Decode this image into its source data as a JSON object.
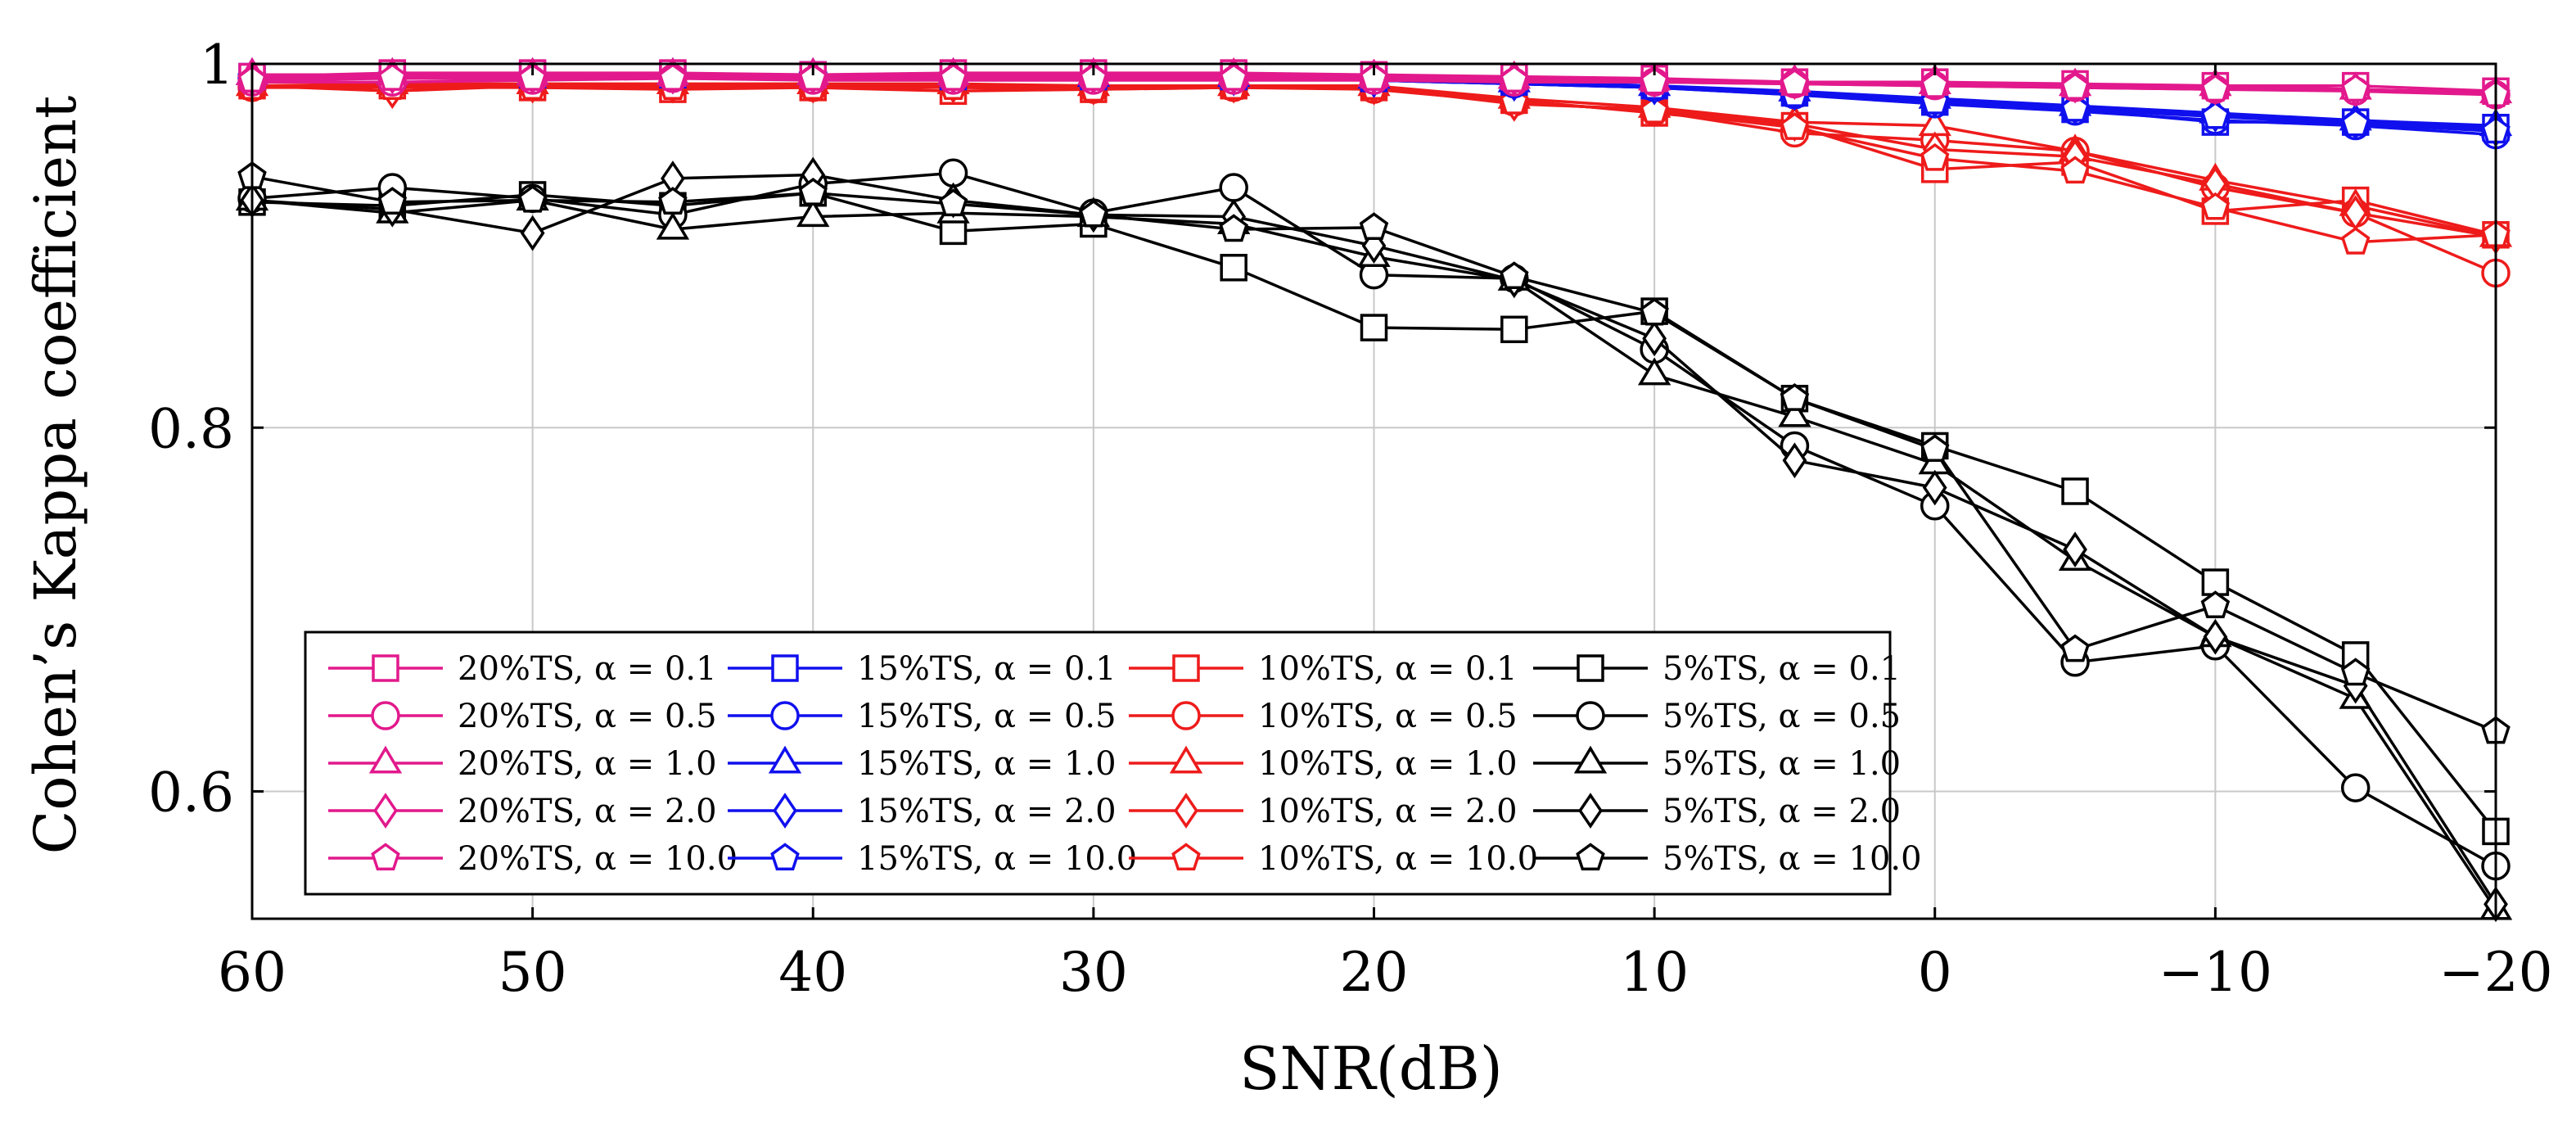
{
  "chart_data": {
    "type": "line",
    "title": "",
    "xlabel": "SNR(dB)",
    "ylabel": "Cohen’s Kappa coefficient",
    "xlim": [
      60,
      -20
    ],
    "ylim": [
      0.53,
      1.0
    ],
    "grid": true,
    "legend_position": "bottom-left",
    "x": [
      60,
      55,
      50,
      45,
      40,
      35,
      30,
      25,
      20,
      15,
      10,
      5,
      0,
      -5,
      -10,
      -15,
      -20
    ],
    "x_ticks": [
      60,
      50,
      40,
      30,
      20,
      10,
      0,
      -10,
      -20
    ],
    "x_tick_labels": [
      "60",
      "50",
      "40",
      "30",
      "20",
      "10",
      "0",
      "−10",
      "−20"
    ],
    "y_ticks": [
      0.6,
      0.8,
      1.0
    ],
    "y_tick_labels": [
      "0.6",
      "0.8",
      "1"
    ],
    "colors": {
      "20%TS": "#e2198c",
      "15%TS": "#1010ee",
      "10%TS": "#ee1b1b",
      "5%TS": "#000000"
    },
    "series": [
      {
        "name": "20%TS, α = 0.1",
        "group": "20%TS",
        "marker": "square",
        "values": [
          0.993,
          0.995,
          0.995,
          0.995,
          0.994,
          0.995,
          0.995,
          0.995,
          0.994,
          0.993,
          0.992,
          0.99,
          0.99,
          0.989,
          0.988,
          0.988,
          0.985
        ]
      },
      {
        "name": "20%TS, α = 0.5",
        "group": "20%TS",
        "marker": "circle",
        "values": [
          0.99,
          0.99,
          0.991,
          0.992,
          0.991,
          0.991,
          0.991,
          0.991,
          0.991,
          0.99,
          0.99,
          0.989,
          0.988,
          0.987,
          0.986,
          0.985,
          0.983
        ]
      },
      {
        "name": "20%TS, α = 1.0",
        "group": "20%TS",
        "marker": "triangle",
        "values": [
          0.994,
          0.994,
          0.994,
          0.994,
          0.994,
          0.994,
          0.994,
          0.994,
          0.993,
          0.992,
          0.991,
          0.99,
          0.989,
          0.988,
          0.988,
          0.986,
          0.984
        ]
      },
      {
        "name": "20%TS, α = 2.0",
        "group": "20%TS",
        "marker": "diamond",
        "values": [
          0.992,
          0.993,
          0.993,
          0.993,
          0.993,
          0.993,
          0.993,
          0.993,
          0.993,
          0.992,
          0.991,
          0.99,
          0.99,
          0.988,
          0.987,
          0.986,
          0.984
        ]
      },
      {
        "name": "20%TS, α = 10.0",
        "group": "20%TS",
        "marker": "pentagon",
        "values": [
          0.991,
          0.992,
          0.992,
          0.992,
          0.992,
          0.992,
          0.992,
          0.992,
          0.992,
          0.991,
          0.99,
          0.989,
          0.988,
          0.987,
          0.986,
          0.986,
          0.983
        ]
      },
      {
        "name": "15%TS, α = 0.1",
        "group": "15%TS",
        "marker": "square",
        "values": [
          0.993,
          0.994,
          0.994,
          0.994,
          0.994,
          0.993,
          0.993,
          0.993,
          0.992,
          0.99,
          0.988,
          0.984,
          0.979,
          0.975,
          0.968,
          0.968,
          0.965
        ]
      },
      {
        "name": "15%TS, α = 0.5",
        "group": "15%TS",
        "marker": "circle",
        "values": [
          0.992,
          0.993,
          0.993,
          0.993,
          0.993,
          0.993,
          0.992,
          0.992,
          0.991,
          0.989,
          0.987,
          0.983,
          0.978,
          0.974,
          0.969,
          0.966,
          0.961
        ]
      },
      {
        "name": "15%TS, α = 1.0",
        "group": "15%TS",
        "marker": "triangle",
        "values": [
          0.994,
          0.994,
          0.994,
          0.994,
          0.994,
          0.994,
          0.993,
          0.993,
          0.992,
          0.99,
          0.988,
          0.985,
          0.981,
          0.977,
          0.973,
          0.969,
          0.966
        ]
      },
      {
        "name": "15%TS, α = 2.0",
        "group": "15%TS",
        "marker": "diamond",
        "values": [
          0.993,
          0.993,
          0.993,
          0.993,
          0.993,
          0.993,
          0.993,
          0.992,
          0.991,
          0.989,
          0.987,
          0.984,
          0.98,
          0.976,
          0.972,
          0.968,
          0.964
        ]
      },
      {
        "name": "15%TS, α = 10.0",
        "group": "15%TS",
        "marker": "pentagon",
        "values": [
          0.992,
          0.993,
          0.993,
          0.993,
          0.993,
          0.993,
          0.992,
          0.992,
          0.991,
          0.989,
          0.987,
          0.983,
          0.979,
          0.975,
          0.971,
          0.967,
          0.963
        ]
      },
      {
        "name": "10%TS, α = 0.1",
        "group": "10%TS",
        "marker": "square",
        "values": [
          0.988,
          0.988,
          0.987,
          0.986,
          0.987,
          0.985,
          0.986,
          0.988,
          0.987,
          0.98,
          0.973,
          0.966,
          0.942,
          0.946,
          0.919,
          0.925,
          0.906
        ]
      },
      {
        "name": "10%TS, α = 0.5",
        "group": "10%TS",
        "marker": "circle",
        "values": [
          0.987,
          0.988,
          0.988,
          0.988,
          0.987,
          0.988,
          0.986,
          0.987,
          0.986,
          0.979,
          0.974,
          0.962,
          0.958,
          0.952,
          0.932,
          0.918,
          0.885
        ]
      },
      {
        "name": "10%TS, α = 1.0",
        "group": "10%TS",
        "marker": "triangle",
        "values": [
          0.988,
          0.989,
          0.989,
          0.989,
          0.989,
          0.989,
          0.988,
          0.988,
          0.988,
          0.981,
          0.976,
          0.968,
          0.966,
          0.952,
          0.936,
          0.922,
          0.905
        ]
      },
      {
        "name": "10%TS, α = 2.0",
        "group": "10%TS",
        "marker": "diamond",
        "values": [
          0.988,
          0.985,
          0.988,
          0.988,
          0.988,
          0.988,
          0.987,
          0.988,
          0.987,
          0.978,
          0.975,
          0.967,
          0.953,
          0.949,
          0.934,
          0.918,
          0.905
        ]
      },
      {
        "name": "10%TS, α = 10.0",
        "group": "10%TS",
        "marker": "pentagon",
        "values": [
          0.987,
          0.987,
          0.987,
          0.987,
          0.987,
          0.987,
          0.986,
          0.987,
          0.987,
          0.979,
          0.974,
          0.965,
          0.948,
          0.941,
          0.921,
          0.902,
          0.906
        ]
      },
      {
        "name": "5%TS, α = 0.1",
        "group": "5%TS",
        "marker": "square",
        "values": [
          0.924,
          0.922,
          0.928,
          0.922,
          0.929,
          0.908,
          0.912,
          0.888,
          0.855,
          0.854,
          0.864,
          0.816,
          0.79,
          0.765,
          0.715,
          0.675,
          0.578
        ]
      },
      {
        "name": "5%TS, α = 0.5",
        "group": "5%TS",
        "marker": "circle",
        "values": [
          0.926,
          0.932,
          0.926,
          0.917,
          0.934,
          0.94,
          0.918,
          0.932,
          0.884,
          0.882,
          0.843,
          0.79,
          0.757,
          0.671,
          0.68,
          0.602,
          0.559
        ]
      },
      {
        "name": "5%TS, α = 1.0",
        "group": "5%TS",
        "marker": "triangle",
        "values": [
          0.925,
          0.918,
          0.925,
          0.909,
          0.916,
          0.918,
          0.916,
          0.912,
          0.894,
          0.881,
          0.829,
          0.806,
          0.78,
          0.727,
          0.685,
          0.651,
          0.535
        ]
      },
      {
        "name": "5%TS, α = 2.0",
        "group": "5%TS",
        "marker": "diamond",
        "values": [
          0.925,
          0.92,
          0.907,
          0.937,
          0.939,
          0.925,
          0.917,
          0.916,
          0.9,
          0.881,
          0.849,
          0.782,
          0.767,
          0.733,
          0.685,
          0.658,
          0.538
        ]
      },
      {
        "name": "5%TS, α = 10.0",
        "group": "5%TS",
        "marker": "pentagon",
        "values": [
          0.938,
          0.924,
          0.925,
          0.924,
          0.929,
          0.923,
          0.917,
          0.909,
          0.91,
          0.883,
          0.863,
          0.816,
          0.788,
          0.678,
          0.702,
          0.665,
          0.633
        ]
      }
    ]
  }
}
